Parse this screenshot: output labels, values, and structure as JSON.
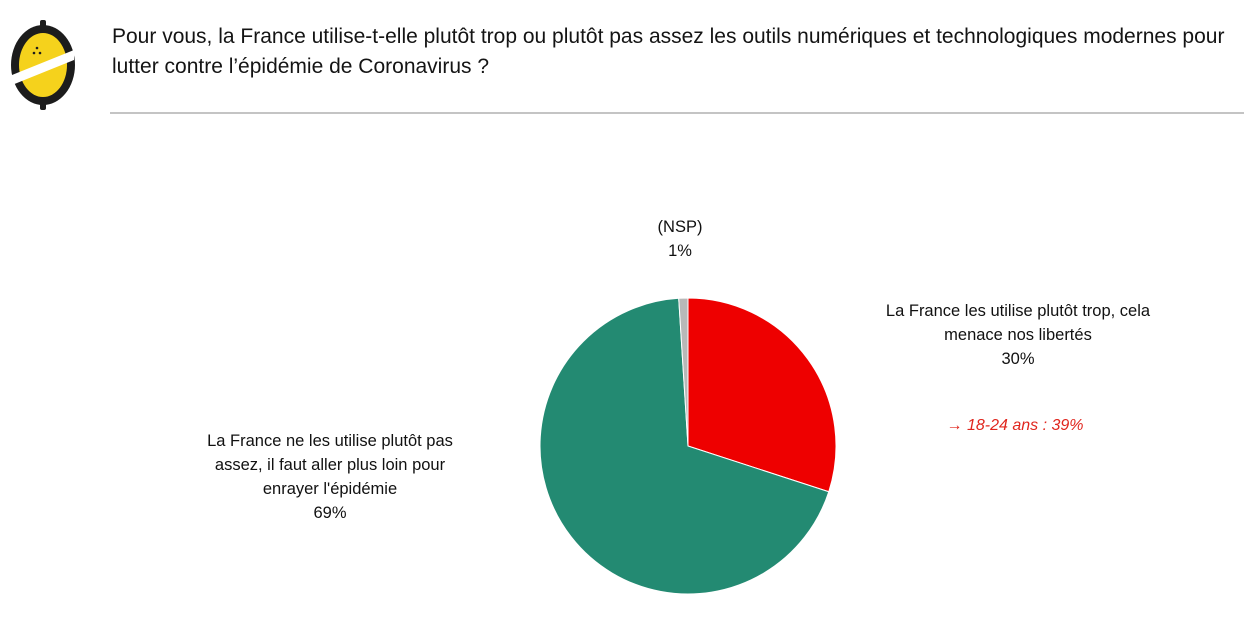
{
  "header": {
    "question": "Pour vous, la France utilise-t-elle plutôt trop ou plutôt pas assez les outils numériques et technologiques modernes pour lutter contre l’épidémie de Coronavirus ?"
  },
  "colors": {
    "logo_yellow": "#f5d21c",
    "logo_dark": "#1c1c1c",
    "too_much": "#ee0000",
    "not_enough": "#238a72",
    "nsp": "#b8b8b8",
    "annotation": "#e0261e"
  },
  "chart_data": {
    "type": "pie",
    "title": "",
    "slices": [
      {
        "name": "La France les utilise plutôt trop, cela menace nos libertés",
        "label_lines": [
          "La France les utilise plutôt trop, cela",
          "menace nos libertés"
        ],
        "value_label": "30%",
        "value": 30,
        "color": "#ee0000"
      },
      {
        "name": "La France ne les utilise plutôt pas assez, il faut aller plus loin pour enrayer l'épidémie",
        "label_lines": [
          "La France ne les utilise plutôt pas",
          "assez, il faut aller plus loin pour",
          "enrayer l'épidémie"
        ],
        "value_label": "69%",
        "value": 69,
        "color": "#238a72"
      },
      {
        "name": "(NSP)",
        "label_lines": [
          "(NSP)"
        ],
        "value_label": "1%",
        "value": 1,
        "color": "#b8b8b8"
      }
    ],
    "annotation": "→ 18-24 ans : 39%",
    "legend": "none"
  }
}
